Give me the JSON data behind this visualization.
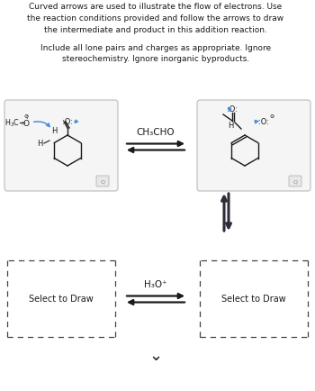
{
  "title_lines": [
    "Curved arrows are used to illustrate the flow of electrons. Use",
    "the reaction conditions provided and follow the arrows to draw",
    "the intermediate and product in this addition reaction."
  ],
  "subtitle_lines": [
    "Include all lone pairs and charges as appropriate. Ignore",
    "stereochemistry. Ignore inorganic byproducts."
  ],
  "bg_color": "#ffffff",
  "text_color": "#1a1a1a",
  "box1_color": "#f5f5f5",
  "box1_border": "#bbbbbb",
  "box2_color": "#f5f5f5",
  "box2_border": "#bbbbbb",
  "reaction_label_top": "CH₃CHO",
  "eq_arrow_color": "#1a1a1a",
  "vert_arrow_color": "#2d2d3a",
  "reaction_label_bottom": "H₃O⁺",
  "select_to_draw": "Select to Draw",
  "dashed_box_color": "#444444",
  "blue": "#4a90d9",
  "gray_border": "#cccccc"
}
